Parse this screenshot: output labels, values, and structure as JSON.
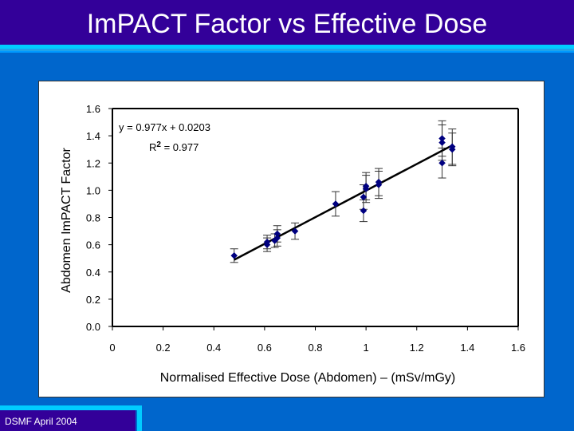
{
  "slide": {
    "title": "ImPACT Factor vs Effective Dose",
    "footer": "DSMF April 2004"
  },
  "colors": {
    "background": "#0066cc",
    "title_bar": "#330099",
    "accent_stripe": "#00ccff",
    "marker": "#000080",
    "trendline": "#000000"
  },
  "chart_data": {
    "type": "scatter",
    "xlabel": "Normalised Effective Dose (Abdomen) – (mSv/mGy)",
    "ylabel": "Abdomen ImPACT Factor",
    "xlim": [
      0,
      1.6
    ],
    "ylim": [
      0,
      1.6
    ],
    "x_ticks": [
      "0",
      "0.2",
      "0.4",
      "0.6",
      "0.8",
      "1",
      "1.2",
      "1.4",
      "1.6"
    ],
    "y_ticks": [
      "0.0",
      "0.2",
      "0.4",
      "0.6",
      "0.8",
      "1.0",
      "1.2",
      "1.4",
      "1.6"
    ],
    "grid": false,
    "marker": "diamond",
    "series": [
      {
        "points": [
          {
            "x": 0.48,
            "y": 0.52,
            "err": 0.05
          },
          {
            "x": 0.61,
            "y": 0.6,
            "err": 0.05
          },
          {
            "x": 0.61,
            "y": 0.62,
            "err": 0.05
          },
          {
            "x": 0.64,
            "y": 0.63,
            "err": 0.05
          },
          {
            "x": 0.65,
            "y": 0.65,
            "err": 0.06
          },
          {
            "x": 0.65,
            "y": 0.68,
            "err": 0.06
          },
          {
            "x": 0.72,
            "y": 0.7,
            "err": 0.06
          },
          {
            "x": 0.88,
            "y": 0.9,
            "err": 0.09
          },
          {
            "x": 0.99,
            "y": 0.85,
            "err": 0.08
          },
          {
            "x": 0.99,
            "y": 0.95,
            "err": 0.09
          },
          {
            "x": 1.0,
            "y": 1.01,
            "err": 0.1
          },
          {
            "x": 1.0,
            "y": 1.03,
            "err": 0.1
          },
          {
            "x": 1.05,
            "y": 1.04,
            "err": 0.1
          },
          {
            "x": 1.05,
            "y": 1.06,
            "err": 0.1
          },
          {
            "x": 1.3,
            "y": 1.2,
            "err": 0.11
          },
          {
            "x": 1.3,
            "y": 1.35,
            "err": 0.13
          },
          {
            "x": 1.3,
            "y": 1.38,
            "err": 0.13
          },
          {
            "x": 1.34,
            "y": 1.3,
            "err": 0.12
          },
          {
            "x": 1.34,
            "y": 1.32,
            "err": 0.13
          }
        ]
      }
    ],
    "trendline": {
      "slope": 0.977,
      "intercept": 0.0203,
      "x_range": [
        0.48,
        1.34
      ],
      "equation": "y = 0.977x + 0.0203",
      "r2_prefix": "R",
      "r2_exp": "2",
      "r2_value": " = 0.977"
    }
  }
}
